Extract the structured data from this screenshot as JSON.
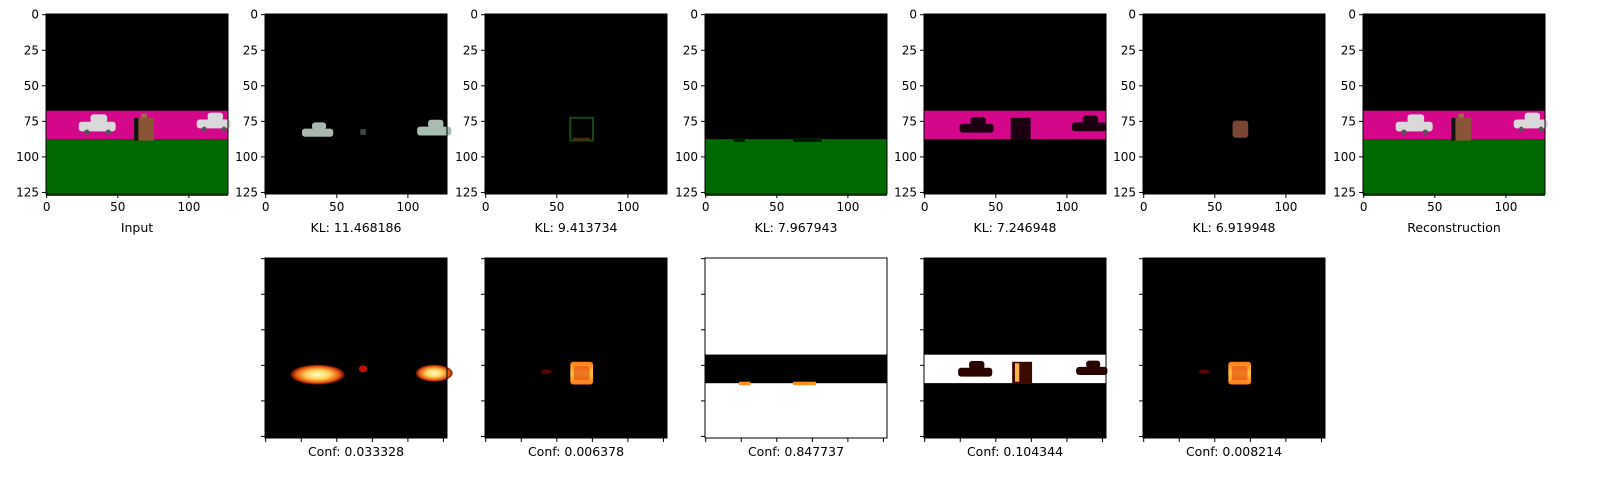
{
  "axes": {
    "tick_values": [
      0,
      25,
      50,
      75,
      100,
      125
    ],
    "x_tick_values": [
      0,
      50,
      100
    ],
    "image_size": 128
  },
  "colors": {
    "sky": "#000000",
    "road": "#d4078a",
    "grass": "#006a00",
    "car": "#d9d9d9",
    "box": "#8a5536"
  },
  "top_row": [
    {
      "label": "Input",
      "kind": "scene"
    },
    {
      "label": "KL: 11.468186",
      "kind": "cars"
    },
    {
      "label": "KL: 9.413734",
      "kind": "box_faint"
    },
    {
      "label": "KL: 7.967943",
      "kind": "grass"
    },
    {
      "label": "KL: 7.246948",
      "kind": "road"
    },
    {
      "label": "KL: 6.919948",
      "kind": "box"
    },
    {
      "label": "Reconstruction",
      "kind": "scene"
    }
  ],
  "bottom_row": [
    {
      "label": "Conf: 0.033328",
      "kind": "cars"
    },
    {
      "label": "Conf: 0.006378",
      "kind": "box"
    },
    {
      "label": "Conf: 0.847737",
      "kind": "grass"
    },
    {
      "label": "Conf: 0.104344",
      "kind": "road"
    },
    {
      "label": "Conf: 0.008214",
      "kind": "box"
    }
  ]
}
